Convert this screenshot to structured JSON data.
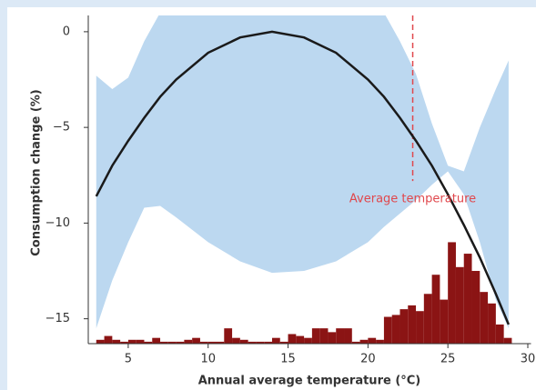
{
  "chart_data": {
    "type": "line",
    "x_label": "Annual average temperature (°C)",
    "y_label": "Consumption change (%)",
    "xlim": [
      2.5,
      30.2
    ],
    "ylim": [
      -16.3,
      0.85
    ],
    "xticks": [
      5,
      10,
      15,
      20,
      25,
      30
    ],
    "yticks": [
      0,
      {
        "value": -5,
        "label": "−5"
      },
      {
        "value": -10,
        "label": "−10"
      },
      {
        "value": -15,
        "label": "−15"
      }
    ],
    "band": {
      "color": "#bcd8f0",
      "x": [
        3,
        4,
        5,
        6,
        7,
        8,
        10,
        12,
        14,
        16,
        18,
        20,
        21,
        22,
        23,
        24,
        25,
        26,
        27,
        28,
        28.8
      ],
      "upper": [
        -2.3,
        -3.0,
        -2.4,
        -0.5,
        1,
        1.8,
        3,
        3.7,
        4,
        3.8,
        3,
        1.8,
        1,
        -0.5,
        -2.2,
        -4.8,
        -7.0,
        -7.3,
        -5,
        -3,
        -1.5
      ],
      "lower": [
        -15.5,
        -13,
        -11,
        -9.2,
        -9.1,
        -9.7,
        -11,
        -12,
        -12.6,
        -12.5,
        -12,
        -11,
        -10.2,
        -9.5,
        -8.8,
        -8,
        -7.3,
        -8.5,
        -11,
        -14,
        -15.5
      ]
    },
    "curve": {
      "color": "#1a1a1a",
      "x": [
        3,
        4,
        5,
        6,
        7,
        8,
        10,
        12,
        14,
        16,
        18,
        20,
        21,
        22,
        23,
        24,
        25,
        26,
        27,
        28,
        28.8
      ],
      "y": [
        -8.6,
        -7.0,
        -5.7,
        -4.5,
        -3.4,
        -2.5,
        -1.1,
        -0.3,
        0,
        -0.3,
        -1.1,
        -2.5,
        -3.4,
        -4.5,
        -5.7,
        -7.0,
        -8.5,
        -10.1,
        -11.8,
        -13.7,
        -15.3
      ]
    },
    "histogram": {
      "color": "#8b1414",
      "bins": [
        3,
        3.5,
        4,
        4.5,
        5,
        5.5,
        6,
        6.5,
        7,
        7.5,
        8,
        8.5,
        9,
        9.5,
        10,
        10.5,
        11,
        11.5,
        12,
        12.5,
        13,
        13.5,
        14,
        14.5,
        15,
        15.5,
        16,
        16.5,
        17,
        17.5,
        18,
        18.5,
        19,
        19.5,
        20,
        20.5,
        21,
        21.5,
        22,
        22.5,
        23,
        23.5,
        24,
        24.5,
        25,
        25.5,
        26,
        26.5,
        27,
        27.5,
        28,
        28.5,
        29
      ],
      "tops": [
        -16.1,
        -15.9,
        -16.1,
        -16.2,
        -16.1,
        -16.1,
        -16.2,
        -16.0,
        -16.2,
        -16.2,
        -16.2,
        -16.1,
        -16.0,
        -16.2,
        -16.2,
        -16.2,
        -15.5,
        -16.0,
        -16.1,
        -16.2,
        -16.2,
        -16.2,
        -16.0,
        -16.2,
        -15.8,
        -15.9,
        -16.0,
        -15.5,
        -15.5,
        -15.7,
        -15.5,
        -15.5,
        -16.2,
        -16.1,
        -16.0,
        -16.1,
        -14.9,
        -14.8,
        -14.5,
        -14.3,
        -14.6,
        -13.7,
        -12.7,
        -14.0,
        -11.0,
        -12.3,
        -11.6,
        -12.5,
        -13.6,
        -14.2,
        -15.3,
        -16.0
      ]
    },
    "reference_line": {
      "x": 22.8,
      "y_end": -7.8,
      "label": "Average temperature",
      "color": "#e0474c"
    }
  }
}
